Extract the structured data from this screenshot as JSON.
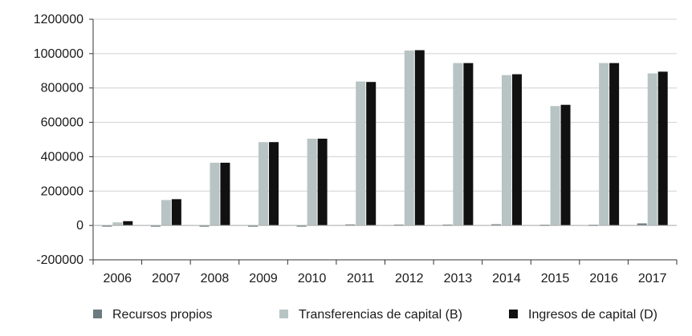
{
  "chart_data": {
    "type": "bar",
    "title": "",
    "xlabel": "",
    "ylabel": "",
    "ylim": [
      -200000,
      1200000
    ],
    "yticks": [
      -200000,
      0,
      200000,
      400000,
      600000,
      800000,
      1000000,
      1200000
    ],
    "ytick_labels": [
      "-200000",
      "0",
      "200000",
      "400000",
      "600000",
      "800000",
      "1000000",
      "1200000"
    ],
    "categories": [
      "2006",
      "2007",
      "2008",
      "2009",
      "2010",
      "2011",
      "2012",
      "2013",
      "2014",
      "2015",
      "2016",
      "2017"
    ],
    "grid": "horizontal",
    "legend_position": "bottom",
    "series": [
      {
        "name": "Recursos propios",
        "color": "#6b7b80",
        "values": [
          -5000,
          -4000,
          -5000,
          -7000,
          -6000,
          6000,
          5000,
          5000,
          7000,
          4000,
          4000,
          12000
        ]
      },
      {
        "name": "Transferencias de capital (B)",
        "color": "#b8c4c4",
        "values": [
          18000,
          148000,
          365000,
          485000,
          505000,
          838000,
          1018000,
          945000,
          875000,
          695000,
          945000,
          885000
        ]
      },
      {
        "name": "Ingresos de capital (D)",
        "color": "#111111",
        "values": [
          25000,
          153000,
          365000,
          485000,
          505000,
          835000,
          1020000,
          945000,
          880000,
          702000,
          945000,
          895000
        ]
      }
    ]
  }
}
